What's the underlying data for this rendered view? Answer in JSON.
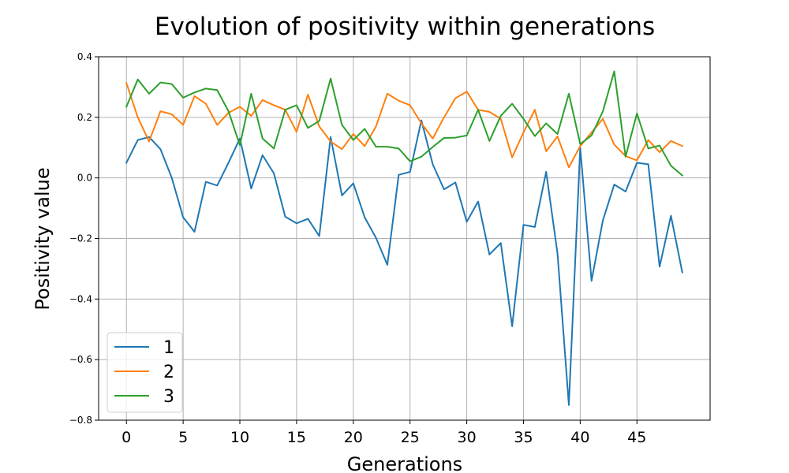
{
  "chart_data": {
    "type": "line",
    "title": "Evolution of positivity within generations",
    "xlabel": "Generations",
    "ylabel": "Positivity value",
    "xlim": [
      -2.45,
      51.45
    ],
    "ylim": [
      -0.8,
      0.4
    ],
    "xticks": [
      0,
      5,
      10,
      15,
      20,
      25,
      30,
      35,
      40,
      45
    ],
    "xtick_labels": [
      "0",
      "5",
      "10",
      "15",
      "20",
      "25",
      "30",
      "35",
      "40",
      "45"
    ],
    "yticks": [
      -0.8,
      -0.6,
      -0.4,
      -0.2,
      0.0,
      0.2,
      0.4
    ],
    "ytick_labels": [
      "−0.8",
      "−0.6",
      "−0.4",
      "−0.2",
      "0.0",
      "0.2",
      "0.4"
    ],
    "grid": true,
    "legend_position": "bottom-left",
    "x": [
      0,
      1,
      2,
      3,
      4,
      5,
      6,
      7,
      8,
      9,
      10,
      11,
      12,
      13,
      14,
      15,
      16,
      17,
      18,
      19,
      20,
      21,
      22,
      23,
      24,
      25,
      26,
      27,
      28,
      29,
      30,
      31,
      32,
      33,
      34,
      35,
      36,
      37,
      38,
      39,
      40,
      41,
      42,
      43,
      44,
      45,
      46,
      47,
      48,
      49
    ],
    "series": [
      {
        "name": "1",
        "color": "#1f77b4",
        "values": [
          0.05,
          0.125,
          0.135,
          0.095,
          0.0,
          -0.13,
          -0.178,
          -0.013,
          -0.025,
          0.05,
          0.13,
          -0.035,
          0.075,
          0.015,
          -0.128,
          -0.15,
          -0.135,
          -0.192,
          0.135,
          -0.058,
          -0.018,
          -0.13,
          -0.198,
          -0.287,
          0.01,
          0.02,
          0.19,
          0.045,
          -0.038,
          -0.015,
          -0.145,
          -0.078,
          -0.253,
          -0.215,
          -0.49,
          -0.155,
          -0.162,
          0.02,
          -0.25,
          -0.75,
          0.1,
          -0.34,
          -0.14,
          -0.022,
          -0.045,
          0.05,
          0.045,
          -0.293,
          -0.125,
          -0.312
        ]
      },
      {
        "name": "2",
        "color": "#ff7f0e",
        "values": [
          0.313,
          0.2,
          0.12,
          0.22,
          0.21,
          0.175,
          0.27,
          0.245,
          0.175,
          0.215,
          0.235,
          0.205,
          0.257,
          0.24,
          0.225,
          0.152,
          0.275,
          0.17,
          0.12,
          0.095,
          0.145,
          0.105,
          0.17,
          0.278,
          0.255,
          0.24,
          0.18,
          0.13,
          0.2,
          0.263,
          0.285,
          0.225,
          0.218,
          0.195,
          0.068,
          0.15,
          0.225,
          0.088,
          0.137,
          0.035,
          0.105,
          0.15,
          0.195,
          0.11,
          0.072,
          0.058,
          0.125,
          0.085,
          0.122,
          0.105
        ]
      },
      {
        "name": "3",
        "color": "#2ca02c",
        "values": [
          0.235,
          0.325,
          0.278,
          0.315,
          0.31,
          0.265,
          0.282,
          0.295,
          0.29,
          0.22,
          0.108,
          0.278,
          0.13,
          0.097,
          0.225,
          0.24,
          0.165,
          0.188,
          0.328,
          0.175,
          0.125,
          0.162,
          0.103,
          0.103,
          0.097,
          0.055,
          0.07,
          0.102,
          0.132,
          0.133,
          0.14,
          0.225,
          0.122,
          0.205,
          0.245,
          0.195,
          0.138,
          0.18,
          0.145,
          0.278,
          0.112,
          0.14,
          0.22,
          0.352,
          0.07,
          0.213,
          0.097,
          0.107,
          0.04,
          0.008
        ]
      }
    ]
  }
}
